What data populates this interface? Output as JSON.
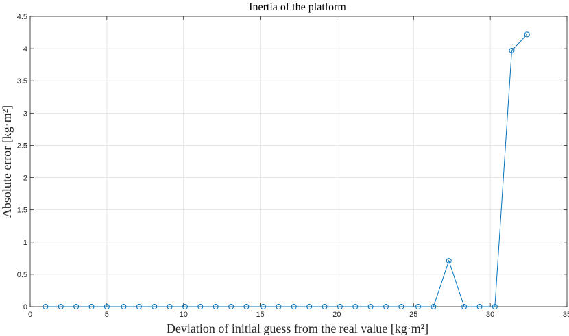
{
  "chart_data": {
    "type": "line",
    "title": "Inertia of the platform",
    "xlabel": "Deviation of initial guess from the real value [kg·m²]",
    "ylabel": "Absolute error [kg·m²]",
    "xlim": [
      0,
      35
    ],
    "ylim": [
      0,
      4.5
    ],
    "xticks": [
      "0",
      "5",
      "10",
      "15",
      "20",
      "25",
      "30",
      "35"
    ],
    "yticks": [
      "0",
      "0.5",
      "1",
      "1.5",
      "2",
      "2.5",
      "3",
      "3.5",
      "4",
      "4.5"
    ],
    "grid": true,
    "marker": "open-circle",
    "colors": {
      "series": "#0072bd",
      "grid": "#e6e6e6",
      "axis": "#262626"
    },
    "series": [
      {
        "x": [
          1.0,
          2.0,
          3.0,
          4.0,
          5.0,
          6.1,
          7.1,
          8.1,
          9.1,
          10.1,
          11.1,
          12.1,
          13.1,
          14.1,
          15.2,
          16.2,
          17.2,
          18.2,
          19.2,
          20.2,
          21.2,
          22.2,
          23.2,
          24.2,
          25.3,
          26.3,
          27.3,
          28.3,
          29.3,
          30.3,
          31.4,
          32.4
        ],
        "y": [
          0,
          0,
          0,
          0,
          0,
          0,
          0,
          0,
          0,
          0,
          0,
          0,
          0,
          0,
          0,
          0,
          0,
          0,
          0,
          0,
          0,
          0,
          0,
          0,
          0,
          0,
          0.71,
          0,
          0,
          0,
          3.97,
          4.22
        ]
      }
    ]
  }
}
